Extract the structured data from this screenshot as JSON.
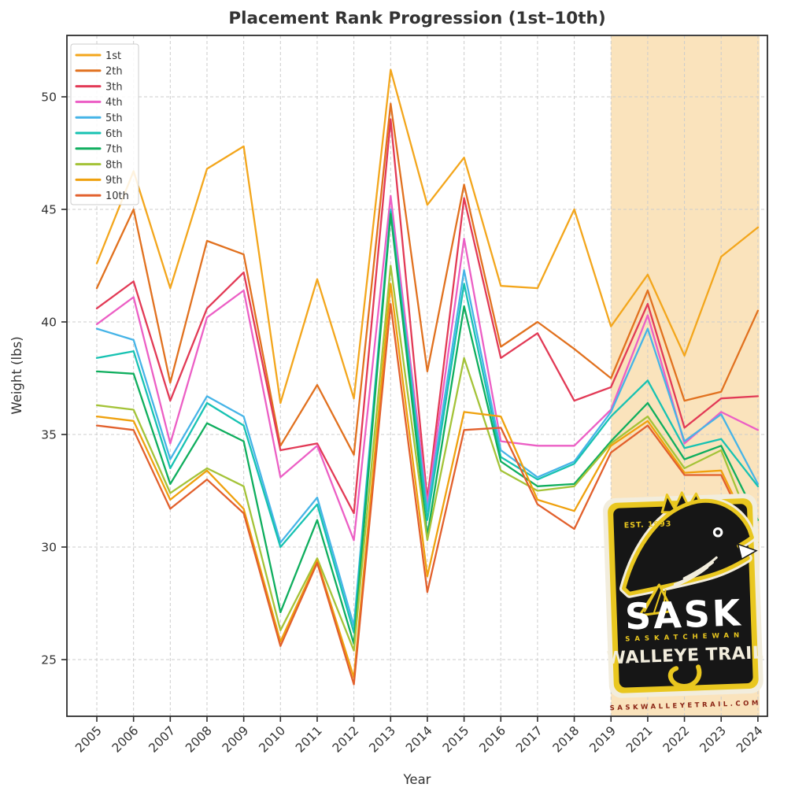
{
  "title": "Placement Rank Progression (1st–10th)",
  "logo": {
    "established": "EST. 1993",
    "main": "SASK",
    "region": "SASKATCHEWAN",
    "tagline": "WALLEYE TRAIL",
    "website": "SASKWALLEYETRAIL.COM",
    "colors": {
      "yellow": "#E9C71F",
      "black": "#161616",
      "cream": "#F2EDDD",
      "website_red": "#8B2515"
    }
  },
  "chart_data": {
    "type": "line",
    "title": "Placement Rank Progression (1st–10th)",
    "xlabel": "Year",
    "ylabel": "Weight (lbs)",
    "x_labels": [
      "2005",
      "2006",
      "2007",
      "2008",
      "2009",
      "2010",
      "2011",
      "2012",
      "2013",
      "2014",
      "2015",
      "2016",
      "2017",
      "2018",
      "2019",
      "2021",
      "2022",
      "2023",
      "2024"
    ],
    "y_ticks": [
      25,
      30,
      35,
      40,
      45,
      50
    ],
    "ylim": [
      22.5,
      52.7
    ],
    "grid": true,
    "legend_position": "upper-left",
    "highlight_span": {
      "from": "2019",
      "to": "2024",
      "color": "#FAE3BC"
    },
    "series": [
      {
        "name": "1st",
        "color": "#F3A61C",
        "values": [
          42.6,
          46.7,
          41.5,
          46.8,
          47.8,
          36.4,
          41.9,
          36.6,
          51.2,
          45.2,
          47.3,
          41.6,
          41.5,
          45.0,
          39.8,
          42.1,
          38.5,
          42.9,
          44.2
        ]
      },
      {
        "name": "2th",
        "color": "#E1711F",
        "values": [
          41.5,
          45.0,
          37.3,
          43.6,
          43.0,
          34.5,
          37.2,
          34.1,
          49.7,
          37.8,
          46.1,
          38.9,
          40.0,
          38.8,
          37.5,
          41.4,
          36.5,
          36.9,
          40.5
        ]
      },
      {
        "name": "3th",
        "color": "#E23A56",
        "values": [
          40.6,
          41.8,
          36.5,
          40.6,
          42.2,
          34.3,
          34.6,
          31.5,
          49.0,
          32.1,
          45.5,
          38.4,
          39.5,
          36.5,
          37.1,
          40.8,
          35.3,
          36.6,
          36.7
        ]
      },
      {
        "name": "4th",
        "color": "#EC5FC5",
        "values": [
          39.9,
          41.1,
          34.6,
          40.2,
          41.4,
          33.1,
          34.5,
          30.3,
          45.6,
          31.9,
          43.7,
          34.7,
          34.5,
          34.5,
          36.1,
          40.3,
          34.6,
          36.0,
          35.2
        ]
      },
      {
        "name": "5th",
        "color": "#46B4E7",
        "values": [
          39.7,
          39.2,
          33.9,
          36.7,
          35.8,
          30.2,
          32.2,
          26.5,
          45.0,
          31.6,
          42.3,
          34.3,
          33.1,
          33.8,
          36.0,
          39.7,
          34.7,
          35.9,
          32.8
        ]
      },
      {
        "name": "6th",
        "color": "#17C2B2",
        "values": [
          38.4,
          38.7,
          33.5,
          36.4,
          35.4,
          30.0,
          31.9,
          26.2,
          44.9,
          31.2,
          41.7,
          34.0,
          33.0,
          33.7,
          35.8,
          37.4,
          34.4,
          34.8,
          32.7
        ]
      },
      {
        "name": "7th",
        "color": "#0FAE5E",
        "values": [
          37.8,
          37.7,
          32.8,
          35.5,
          34.7,
          27.1,
          31.2,
          25.7,
          44.8,
          30.5,
          40.7,
          33.8,
          32.7,
          32.8,
          34.7,
          36.4,
          33.9,
          34.5,
          31.2
        ]
      },
      {
        "name": "8th",
        "color": "#A4C338",
        "values": [
          36.3,
          36.1,
          32.4,
          33.5,
          32.7,
          26.3,
          29.5,
          25.4,
          42.5,
          30.3,
          38.4,
          33.4,
          32.5,
          32.7,
          34.6,
          35.8,
          33.5,
          34.3,
          30.2
        ]
      },
      {
        "name": "9th",
        "color": "#EFA10E",
        "values": [
          35.8,
          35.6,
          32.1,
          33.4,
          31.7,
          25.8,
          29.4,
          24.2,
          41.7,
          28.7,
          36.0,
          35.8,
          32.1,
          31.6,
          34.5,
          35.6,
          33.3,
          33.4,
          30.0
        ]
      },
      {
        "name": "10th",
        "color": "#E2602C",
        "values": [
          35.4,
          35.2,
          31.7,
          33.0,
          31.5,
          25.6,
          29.3,
          23.9,
          40.8,
          28.0,
          35.2,
          35.3,
          31.9,
          30.8,
          34.2,
          35.4,
          33.2,
          33.2,
          29.8
        ]
      }
    ]
  }
}
